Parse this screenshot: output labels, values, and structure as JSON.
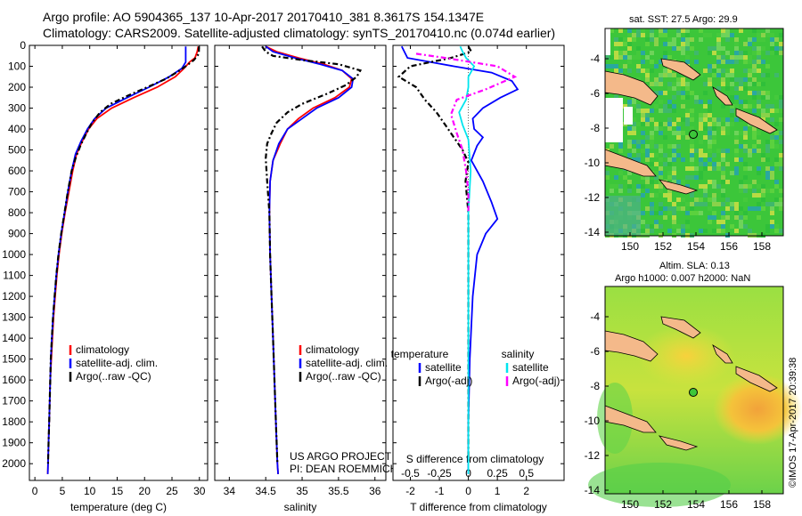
{
  "header": {
    "line1": "Argo profile: AO 5904365_137 10-Apr-2017 20170410_381 8.3617S 154.1347E",
    "line2": "Climatology: CARS2009. Satellite-adjusted climatology: synTS_20170410.nc (0.074d earlier)"
  },
  "colors": {
    "clim": "#ff0000",
    "sat": "#0000ff",
    "argo": "#000000",
    "sal_sat": "#00e5ee",
    "sal_argo": "#ff00ff"
  },
  "chart_data": [
    {
      "id": "temperature",
      "type": "line",
      "xlabel": "temperature (deg C)",
      "ylabel": "",
      "xlim": [
        -1,
        31.5
      ],
      "ylim": [
        2080,
        0
      ],
      "xticks": [
        0,
        5,
        10,
        15,
        20,
        25,
        30
      ],
      "yticks": [
        0,
        100,
        200,
        300,
        400,
        500,
        600,
        700,
        800,
        900,
        1000,
        1100,
        1200,
        1300,
        1400,
        1500,
        1600,
        1700,
        1800,
        1900,
        2000
      ],
      "legend": {
        "placement": "lower-left",
        "entries": [
          "climatology",
          "satellite-adj. clim.",
          "Argo(..raw -QC)"
        ]
      },
      "series": [
        {
          "name": "climatology",
          "color": "#ff0000",
          "dash": false,
          "points": [
            [
              29.8,
              5
            ],
            [
              29.6,
              30
            ],
            [
              29.2,
              60
            ],
            [
              28.2,
              80
            ],
            [
              27.2,
              110
            ],
            [
              25.6,
              150
            ],
            [
              22.3,
              200
            ],
            [
              18.0,
              250
            ],
            [
              14.0,
              300
            ],
            [
              11.3,
              350
            ],
            [
              9.8,
              400
            ],
            [
              8.6,
              460
            ],
            [
              7.6,
              520
            ],
            [
              6.9,
              600
            ],
            [
              6.2,
              700
            ],
            [
              5.5,
              800
            ],
            [
              4.9,
              900
            ],
            [
              4.4,
              1000
            ],
            [
              4.0,
              1100
            ],
            [
              3.7,
              1200
            ],
            [
              3.4,
              1300
            ],
            [
              3.2,
              1400
            ],
            [
              3.0,
              1500
            ],
            [
              2.8,
              1600
            ],
            [
              2.7,
              1700
            ],
            [
              2.6,
              1800
            ],
            [
              2.5,
              1900
            ],
            [
              2.4,
              2000
            ],
            [
              2.35,
              2050
            ]
          ]
        },
        {
          "name": "satellite-adj. clim.",
          "color": "#0000ff",
          "dash": false,
          "points": [
            [
              27.5,
              5
            ],
            [
              27.5,
              60
            ],
            [
              27.5,
              80
            ],
            [
              26.8,
              110
            ],
            [
              24.5,
              150
            ],
            [
              20.8,
              200
            ],
            [
              16.8,
              250
            ],
            [
              13.0,
              300
            ],
            [
              10.9,
              350
            ],
            [
              9.6,
              400
            ],
            [
              8.4,
              460
            ],
            [
              7.4,
              520
            ],
            [
              6.7,
              600
            ],
            [
              6.0,
              700
            ],
            [
              5.4,
              800
            ],
            [
              4.8,
              900
            ],
            [
              4.3,
              1000
            ],
            [
              3.9,
              1100
            ],
            [
              3.6,
              1200
            ],
            [
              3.3,
              1300
            ],
            [
              3.1,
              1400
            ],
            [
              2.9,
              1500
            ],
            [
              2.8,
              1600
            ],
            [
              2.7,
              1700
            ],
            [
              2.6,
              1800
            ],
            [
              2.5,
              1900
            ],
            [
              2.4,
              2000
            ],
            [
              2.35,
              2050
            ]
          ]
        },
        {
          "name": "Argo(..raw -QC)",
          "color": "#000000",
          "dash": true,
          "points": [
            [
              29.9,
              5
            ],
            [
              29.9,
              40
            ],
            [
              29.0,
              70
            ],
            [
              27.5,
              100
            ],
            [
              25.8,
              130
            ],
            [
              23.9,
              160
            ],
            [
              20.5,
              200
            ],
            [
              17.0,
              240
            ],
            [
              13.8,
              280
            ],
            [
              11.9,
              320
            ],
            [
              10.4,
              370
            ],
            [
              9.4,
              420
            ],
            [
              8.3,
              480
            ],
            [
              7.4,
              540
            ],
            [
              6.7,
              600
            ],
            [
              6.0,
              700
            ],
            [
              5.4,
              800
            ],
            [
              4.8,
              900
            ],
            [
              4.3,
              1000
            ],
            [
              3.9,
              1100
            ],
            [
              3.6,
              1200
            ],
            [
              3.3,
              1300
            ],
            [
              3.1,
              1400
            ],
            [
              2.9,
              1500
            ],
            [
              2.8,
              1600
            ],
            [
              2.7,
              1700
            ],
            [
              2.6,
              1800
            ],
            [
              2.5,
              1900
            ],
            [
              2.4,
              2000
            ]
          ]
        }
      ]
    },
    {
      "id": "salinity",
      "type": "line",
      "xlabel": "salinity",
      "ylabel": "",
      "xlim": [
        33.8,
        36.15
      ],
      "ylim": [
        2080,
        0
      ],
      "xticks": [
        34,
        34.5,
        35,
        35.5,
        36
      ],
      "xtick_labels": [
        "34",
        "34.5",
        "35",
        "35.5",
        "36"
      ],
      "legend": {
        "placement": "lower-right",
        "entries": [
          "climatology",
          "satellite-adj. clim.",
          "Argo(..raw -QC)"
        ]
      },
      "annotation": [
        "US ARGO PROJECT",
        "PI: DEAN ROEMMICH"
      ],
      "series": [
        {
          "name": "climatology",
          "color": "#ff0000",
          "dash": false,
          "points": [
            [
              34.5,
              5
            ],
            [
              34.65,
              30
            ],
            [
              34.95,
              60
            ],
            [
              35.3,
              90
            ],
            [
              35.55,
              120
            ],
            [
              35.68,
              160
            ],
            [
              35.65,
              200
            ],
            [
              35.45,
              250
            ],
            [
              35.15,
              300
            ],
            [
              34.95,
              350
            ],
            [
              34.8,
              400
            ],
            [
              34.7,
              470
            ],
            [
              34.6,
              550
            ],
            [
              34.56,
              650
            ],
            [
              34.55,
              800
            ],
            [
              34.56,
              1000
            ],
            [
              34.58,
              1200
            ],
            [
              34.6,
              1400
            ],
            [
              34.62,
              1600
            ],
            [
              34.64,
              1800
            ],
            [
              34.66,
              2000
            ],
            [
              34.67,
              2050
            ]
          ]
        },
        {
          "name": "satellite-adj. clim.",
          "color": "#0000ff",
          "dash": false,
          "points": [
            [
              34.5,
              5
            ],
            [
              34.6,
              30
            ],
            [
              34.9,
              60
            ],
            [
              35.25,
              90
            ],
            [
              35.55,
              120
            ],
            [
              35.7,
              160
            ],
            [
              35.68,
              200
            ],
            [
              35.5,
              250
            ],
            [
              35.2,
              300
            ],
            [
              35.0,
              350
            ],
            [
              34.8,
              400
            ],
            [
              34.68,
              470
            ],
            [
              34.6,
              550
            ],
            [
              34.56,
              650
            ],
            [
              34.55,
              800
            ],
            [
              34.56,
              1000
            ],
            [
              34.58,
              1200
            ],
            [
              34.6,
              1400
            ],
            [
              34.62,
              1600
            ],
            [
              34.64,
              1800
            ],
            [
              34.66,
              2000
            ],
            [
              34.67,
              2050
            ]
          ]
        },
        {
          "name": "Argo(..raw -QC)",
          "color": "#000000",
          "dash": true,
          "points": [
            [
              34.45,
              5
            ],
            [
              34.5,
              30
            ],
            [
              34.6,
              50
            ],
            [
              35.0,
              70
            ],
            [
              35.5,
              90
            ],
            [
              35.8,
              120
            ],
            [
              35.75,
              150
            ],
            [
              35.6,
              190
            ],
            [
              35.35,
              230
            ],
            [
              35.0,
              280
            ],
            [
              34.8,
              320
            ],
            [
              34.65,
              370
            ],
            [
              34.58,
              420
            ],
            [
              34.52,
              470
            ],
            [
              34.5,
              540
            ],
            [
              34.52,
              650
            ],
            [
              34.55,
              800
            ],
            [
              34.56,
              1000
            ],
            [
              34.58,
              1200
            ],
            [
              34.6,
              1400
            ],
            [
              34.62,
              1600
            ],
            [
              34.64,
              1800
            ],
            [
              34.66,
              2000
            ]
          ]
        }
      ]
    },
    {
      "id": "differences",
      "type": "line",
      "xlabel": "T difference from climatology",
      "xlabel_top": "S difference from climatology",
      "ylabel": "",
      "xlim": [
        -2.6,
        3.3
      ],
      "ylim": [
        2080,
        0
      ],
      "xticks": [
        -2,
        -1,
        0,
        1,
        2
      ],
      "sticks": [
        -0.5,
        -0.25,
        0,
        0.25,
        0.5
      ],
      "stick_labels": [
        "-0.5",
        "-0.25",
        "0",
        "0.25",
        "0.5"
      ],
      "legend": {
        "placement": "lower-center",
        "groups": [
          "temperature",
          "salinity"
        ],
        "entries": [
          "satellite",
          "Argo(-adj)",
          "satellite",
          "Argo(-adj)"
        ]
      },
      "series": [
        {
          "name": "temperature satellite",
          "color": "#0000ff",
          "dash": false,
          "points": [
            [
              -2.3,
              5
            ],
            [
              -2.1,
              60
            ],
            [
              -0.5,
              100
            ],
            [
              0.8,
              130
            ],
            [
              1.5,
              170
            ],
            [
              1.7,
              210
            ],
            [
              1.1,
              250
            ],
            [
              0.5,
              300
            ],
            [
              0.15,
              350
            ],
            [
              0.2,
              400
            ],
            [
              0.5,
              440
            ],
            [
              0.3,
              480
            ],
            [
              0.1,
              550
            ],
            [
              0.5,
              650
            ],
            [
              0.8,
              750
            ],
            [
              1.0,
              830
            ],
            [
              0.6,
              900
            ],
            [
              0.3,
              1000
            ],
            [
              0.15,
              1200
            ],
            [
              0.05,
              1500
            ],
            [
              0.0,
              1800
            ],
            [
              0.0,
              2050
            ]
          ]
        },
        {
          "name": "temperature Argo(-adj)",
          "color": "#000000",
          "dash": true,
          "points": [
            [
              0.0,
              5
            ],
            [
              0.1,
              30
            ],
            [
              -0.6,
              60
            ],
            [
              -2.0,
              100
            ],
            [
              -2.4,
              150
            ],
            [
              -1.8,
              200
            ],
            [
              -1.5,
              260
            ],
            [
              -1.1,
              320
            ],
            [
              -0.8,
              380
            ],
            [
              -0.5,
              440
            ],
            [
              -0.2,
              500
            ],
            [
              0.0,
              560
            ],
            [
              -0.1,
              650
            ],
            [
              0.0,
              800
            ],
            [
              0.0,
              1000
            ],
            [
              0.0,
              2000
            ]
          ]
        },
        {
          "name": "salinity satellite",
          "color": "#00e5ee",
          "dash": false,
          "points": [
            [
              -0.07,
              5
            ],
            [
              -0.05,
              30
            ],
            [
              -0.02,
              60
            ],
            [
              0.05,
              100
            ],
            [
              0.0,
              150
            ],
            [
              0.0,
              200
            ],
            [
              -0.02,
              260
            ],
            [
              -0.08,
              320
            ],
            [
              -0.05,
              380
            ],
            [
              0.0,
              450
            ],
            [
              0.02,
              600
            ],
            [
              0.0,
              800
            ],
            [
              0.0,
              1200
            ],
            [
              0.0,
              2050
            ]
          ]
        },
        {
          "name": "salinity Argo(-adj)",
          "color": "#ff00ff",
          "dash": true,
          "points": [
            [
              -0.45,
              40
            ],
            [
              -0.2,
              60
            ],
            [
              0.25,
              100
            ],
            [
              0.4,
              150
            ],
            [
              0.15,
              210
            ],
            [
              -0.1,
              260
            ],
            [
              -0.15,
              330
            ],
            [
              -0.1,
              420
            ],
            [
              -0.05,
              500
            ],
            [
              -0.02,
              600
            ],
            [
              0.0,
              700
            ],
            [
              0.0,
              800
            ]
          ]
        }
      ]
    }
  ],
  "maps": {
    "sst": {
      "title": "sat. SST: 27.5 Argo: 29.9",
      "xticks": [
        "150",
        "152",
        "154",
        "156",
        "158"
      ],
      "yticks": [
        "-4",
        "-6",
        "-8",
        "-10",
        "-12",
        "-14"
      ]
    },
    "sla": {
      "title1": "Altim. SLA: 0.13",
      "title2": "Argo h1000: 0.007 h2000: NaN",
      "xticks": [
        "150",
        "152",
        "154",
        "156",
        "158"
      ],
      "yticks": [
        "-4",
        "-6",
        "-8",
        "-10",
        "-12",
        "-14"
      ]
    }
  },
  "credit": "©IMOS 17-Apr-2017 20:39:38"
}
